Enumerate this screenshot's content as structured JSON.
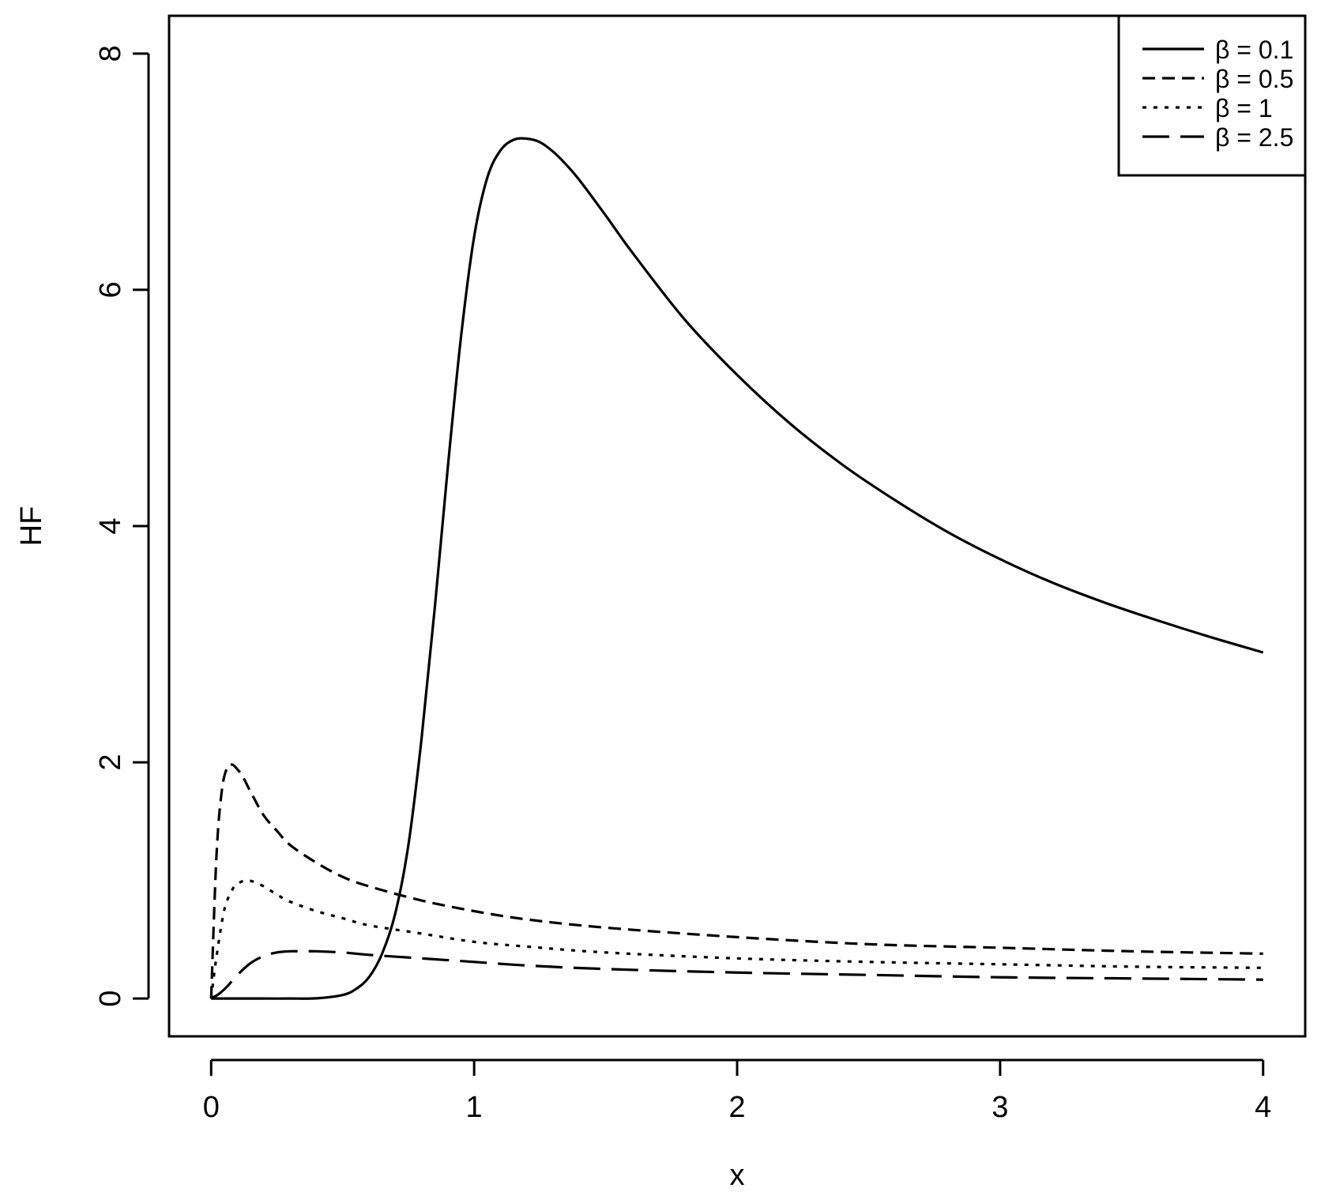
{
  "chart_data": {
    "type": "line",
    "title": "",
    "xlabel": "x",
    "ylabel": "HF",
    "xlim": [
      -0.16,
      4.16
    ],
    "ylim": [
      -0.32,
      8.32
    ],
    "grid": false,
    "legend_position": "top-right",
    "x_ticks": [
      0,
      1,
      2,
      3,
      4
    ],
    "x_tick_labels": [
      "0",
      "1",
      "2",
      "3",
      "4"
    ],
    "y_ticks": [
      0,
      2,
      4,
      6,
      8
    ],
    "y_tick_labels": [
      "0",
      "2",
      "4",
      "6",
      "8"
    ],
    "series": [
      {
        "name": "β = 0.1",
        "line_style": "solid",
        "x": [
          0,
          0.1,
          0.2,
          0.3,
          0.4,
          0.5,
          0.55,
          0.6,
          0.65,
          0.7,
          0.75,
          0.8,
          0.85,
          0.9,
          0.95,
          1.0,
          1.05,
          1.1,
          1.15,
          1.2,
          1.25,
          1.3,
          1.35,
          1.4,
          1.5,
          1.6,
          1.8,
          2.0,
          2.2,
          2.4,
          2.6,
          2.8,
          3.0,
          3.2,
          3.4,
          3.6,
          3.8,
          4.0
        ],
        "y": [
          0,
          0,
          0,
          0,
          0.002,
          0.03,
          0.08,
          0.18,
          0.38,
          0.72,
          1.3,
          2.2,
          3.3,
          4.5,
          5.6,
          6.45,
          6.95,
          7.18,
          7.27,
          7.28,
          7.25,
          7.17,
          7.06,
          6.93,
          6.63,
          6.32,
          5.75,
          5.28,
          4.87,
          4.52,
          4.22,
          3.95,
          3.72,
          3.52,
          3.35,
          3.2,
          3.06,
          2.93
        ]
      },
      {
        "name": "β = 0.5",
        "line_style": "dashed",
        "x": [
          0,
          0.02,
          0.04,
          0.06,
          0.08,
          0.1,
          0.12,
          0.15,
          0.2,
          0.25,
          0.3,
          0.4,
          0.5,
          0.6,
          0.8,
          1.0,
          1.2,
          1.5,
          2.0,
          2.5,
          3.0,
          3.5,
          4.0
        ],
        "y": [
          0,
          1.2,
          1.75,
          1.95,
          1.98,
          1.94,
          1.88,
          1.75,
          1.55,
          1.42,
          1.3,
          1.15,
          1.03,
          0.95,
          0.83,
          0.74,
          0.67,
          0.6,
          0.52,
          0.46,
          0.43,
          0.4,
          0.38
        ]
      },
      {
        "name": "β = 1",
        "line_style": "dotted",
        "x": [
          0,
          0.02,
          0.05,
          0.08,
          0.1,
          0.13,
          0.16,
          0.2,
          0.25,
          0.3,
          0.4,
          0.5,
          0.6,
          0.8,
          1.0,
          1.2,
          1.5,
          2.0,
          2.5,
          3.0,
          3.5,
          4.0
        ],
        "y": [
          0,
          0.35,
          0.75,
          0.92,
          0.97,
          1.0,
          0.99,
          0.95,
          0.88,
          0.82,
          0.74,
          0.68,
          0.62,
          0.55,
          0.48,
          0.44,
          0.39,
          0.34,
          0.31,
          0.29,
          0.27,
          0.26
        ]
      },
      {
        "name": "β = 2.5",
        "line_style": "longdash",
        "x": [
          0,
          0.03,
          0.06,
          0.1,
          0.15,
          0.2,
          0.25,
          0.3,
          0.35,
          0.4,
          0.5,
          0.6,
          0.8,
          1.0,
          1.2,
          1.5,
          2.0,
          2.5,
          3.0,
          3.5,
          4.0
        ],
        "y": [
          0,
          0.04,
          0.1,
          0.2,
          0.3,
          0.36,
          0.39,
          0.4,
          0.4,
          0.4,
          0.39,
          0.37,
          0.34,
          0.31,
          0.28,
          0.25,
          0.22,
          0.2,
          0.18,
          0.17,
          0.16
        ]
      }
    ]
  }
}
